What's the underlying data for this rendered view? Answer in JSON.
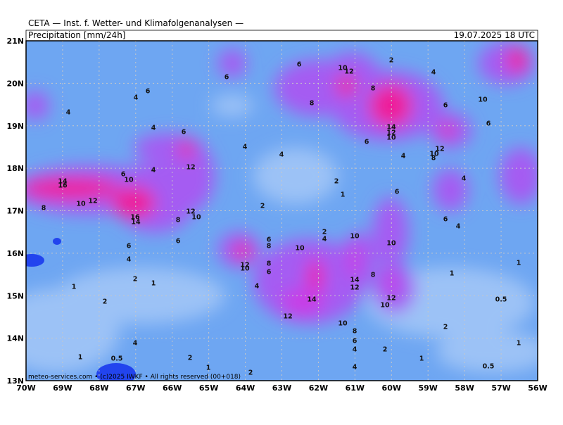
{
  "header": {
    "title": "CETA — Inst. f. Wetter- und Klimafolgenanalysen —",
    "product": "Precipitation [mm/24h]",
    "valid": "19.07.2025 18 UTC"
  },
  "map": {
    "lon_labels": [
      "70W",
      "69W",
      "68W",
      "67W",
      "66W",
      "65W",
      "64W",
      "63W",
      "62W",
      "61W",
      "60W",
      "59W",
      "58W",
      "57W",
      "56W"
    ],
    "lat_labels": [
      "21N",
      "20N",
      "19N",
      "18N",
      "17N",
      "16N",
      "15N",
      "14N",
      "13N"
    ],
    "contour_labels": [
      "6",
      "10",
      "12",
      "2",
      "4",
      "6",
      "6",
      "4",
      "8",
      "8",
      "10",
      "4",
      "6",
      "6",
      "4",
      "6",
      "14",
      "12",
      "10",
      "6",
      "12",
      "10",
      "8",
      "4",
      "4",
      "4",
      "4",
      "12",
      "6",
      "10",
      "14",
      "16",
      "12",
      "10",
      "8",
      "12",
      "10",
      "8",
      "16",
      "14",
      "2",
      "4",
      "1",
      "6",
      "2",
      "6",
      "4",
      "2",
      "4",
      "10",
      "6",
      "6",
      "6",
      "8",
      "10",
      "10",
      "12",
      "10",
      "4",
      "8",
      "6",
      "8",
      "14",
      "12",
      "1",
      "1",
      "2",
      "1",
      "1",
      "4",
      "0.5",
      "12",
      "10",
      "2",
      "14",
      "12",
      "10",
      "8",
      "2",
      "6",
      "4",
      "4",
      "1",
      "2",
      "2",
      "1",
      "1",
      "0.5",
      "0.5",
      "1",
      "4",
      "2"
    ],
    "footer": "meteo-services.com • (c)2025 IWKF • All rights reserved (00+018)"
  }
}
